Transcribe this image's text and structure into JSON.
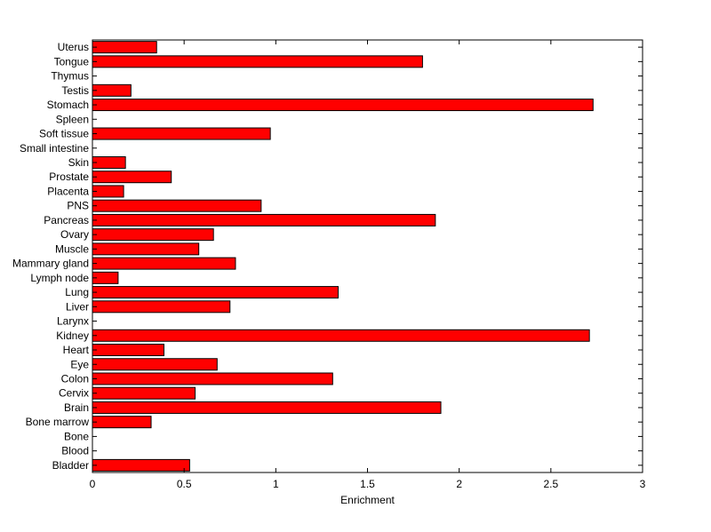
{
  "chart_data": {
    "type": "bar",
    "orientation": "horizontal",
    "title": "",
    "xlabel": "Enrichment",
    "ylabel": "",
    "xlim": [
      0,
      3
    ],
    "xticks": [
      0,
      0.5,
      1,
      1.5,
      2,
      2.5,
      3
    ],
    "xtick_labels": [
      "0",
      "0.5",
      "1",
      "1.5",
      "2",
      "2.5",
      "3"
    ],
    "grid": false,
    "legend": "none",
    "bar_color": "#ff0000",
    "categories": [
      "Uterus",
      "Tongue",
      "Thymus",
      "Testis",
      "Stomach",
      "Spleen",
      "Soft tissue",
      "Small intestine",
      "Skin",
      "Prostate",
      "Placenta",
      "PNS",
      "Pancreas",
      "Ovary",
      "Muscle",
      "Mammary gland",
      "Lymph node",
      "Lung",
      "Liver",
      "Larynx",
      "Kidney",
      "Heart",
      "Eye",
      "Colon",
      "Cervix",
      "Brain",
      "Bone marrow",
      "Bone",
      "Blood",
      "Bladder"
    ],
    "values": [
      0.35,
      1.8,
      0.0,
      0.21,
      2.73,
      0.0,
      0.97,
      0.0,
      0.18,
      0.43,
      0.17,
      0.92,
      1.87,
      0.66,
      0.58,
      0.78,
      0.14,
      1.34,
      0.75,
      0.0,
      2.71,
      0.39,
      0.68,
      1.31,
      0.56,
      1.9,
      0.32,
      0.0,
      0.0,
      0.53
    ]
  }
}
